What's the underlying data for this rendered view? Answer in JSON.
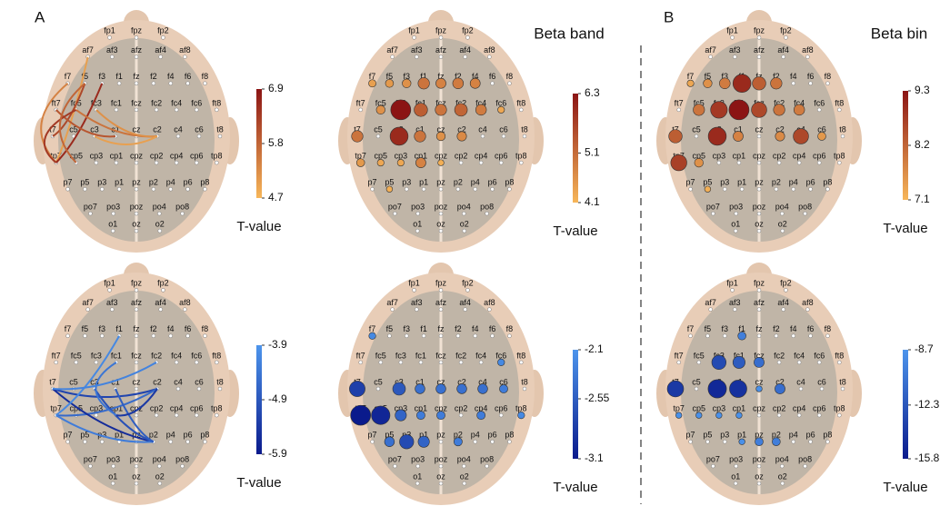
{
  "panel_labels": [
    "A",
    "B"
  ],
  "electrodes": [
    "fp1",
    "fpz",
    "fp2",
    "af7",
    "af3",
    "afz",
    "af4",
    "af8",
    "f7",
    "f5",
    "f3",
    "f1",
    "fz",
    "f2",
    "f4",
    "f6",
    "f8",
    "ft7",
    "fc5",
    "fc3",
    "fc1",
    "fcz",
    "fc2",
    "fc4",
    "fc6",
    "ft8",
    "t7",
    "c5",
    "c3",
    "c1",
    "cz",
    "c2",
    "c4",
    "c6",
    "t8",
    "tp7",
    "cp5",
    "cp3",
    "cp1",
    "cpz",
    "cp2",
    "cp4",
    "cp6",
    "tp8",
    "p7",
    "p5",
    "p3",
    "p1",
    "pz",
    "p2",
    "p4",
    "p6",
    "p8",
    "po7",
    "po3",
    "poz",
    "po4",
    "po8",
    "o1",
    "oz",
    "o2"
  ],
  "plots": [
    {
      "type": "connectivity",
      "colorbar": {
        "lim": [
          4.7,
          6.9
        ],
        "ticks": [
          4.7,
          5.8,
          6.9
        ],
        "label": "T-value",
        "colors": [
          "#f7b659",
          "#8b1414"
        ]
      },
      "connections": [
        {
          "from": "af7",
          "to": "tp7",
          "value": 5.0
        },
        {
          "from": "f7",
          "to": "tp7",
          "value": 5.4
        },
        {
          "from": "f5",
          "to": "t7",
          "value": 6.2
        },
        {
          "from": "f3",
          "to": "tp7",
          "value": 6.6
        },
        {
          "from": "fc5",
          "to": "c2",
          "value": 5.6
        },
        {
          "from": "fc3",
          "to": "c2",
          "value": 5.2
        },
        {
          "from": "c3",
          "to": "c2",
          "value": 5.0
        },
        {
          "from": "ft7",
          "to": "c1",
          "value": 6.0
        },
        {
          "from": "fc5",
          "to": "tp7",
          "value": 6.4
        },
        {
          "from": "f5",
          "to": "cp5",
          "value": 5.8
        }
      ]
    },
    {
      "type": "nodes",
      "title": "Beta band",
      "colorbar": {
        "lim": [
          4.1,
          6.3
        ],
        "ticks": [
          4.1,
          5.1,
          6.3
        ],
        "label": "T-value",
        "colors": [
          "#f7b659",
          "#8b1414"
        ]
      },
      "nodes": [
        {
          "electrode": "fc3",
          "value": 6.3
        },
        {
          "electrode": "c3",
          "value": 6.0
        },
        {
          "electrode": "f1",
          "value": 5.0
        },
        {
          "electrode": "fz",
          "value": 4.8
        },
        {
          "electrode": "f2",
          "value": 4.9
        },
        {
          "electrode": "f4",
          "value": 4.8
        },
        {
          "electrode": "fc1",
          "value": 5.3
        },
        {
          "electrode": "fcz",
          "value": 5.0
        },
        {
          "electrode": "fc2",
          "value": 5.2
        },
        {
          "electrode": "fc4",
          "value": 4.9
        },
        {
          "electrode": "c1",
          "value": 5.0
        },
        {
          "electrode": "cz",
          "value": 4.6
        },
        {
          "electrode": "c2",
          "value": 4.7
        },
        {
          "electrode": "f7",
          "value": 4.4
        },
        {
          "electrode": "f5",
          "value": 4.5
        },
        {
          "electrode": "f3",
          "value": 4.6
        },
        {
          "electrode": "fc5",
          "value": 4.6
        },
        {
          "electrode": "t7",
          "value": 5.0
        },
        {
          "electrode": "tp7",
          "value": 4.5
        },
        {
          "electrode": "cp5",
          "value": 4.3
        },
        {
          "electrode": "cp3",
          "value": 4.3
        },
        {
          "electrode": "cp1",
          "value": 4.8
        },
        {
          "electrode": "cpz",
          "value": 4.2
        },
        {
          "electrode": "p5",
          "value": 4.2
        },
        {
          "electrode": "fc6",
          "value": 4.3
        }
      ]
    },
    {
      "type": "nodes",
      "title": "Beta bin",
      "colorbar": {
        "lim": [
          7.1,
          9.3
        ],
        "ticks": [
          7.1,
          8.2,
          9.3
        ],
        "label": "T-value",
        "colors": [
          "#f7b659",
          "#8b1414"
        ]
      },
      "nodes": [
        {
          "electrode": "f1",
          "value": 9.0
        },
        {
          "electrode": "fz",
          "value": 8.3
        },
        {
          "electrode": "f2",
          "value": 8.0
        },
        {
          "electrode": "fc3",
          "value": 8.8
        },
        {
          "electrode": "fc1",
          "value": 9.3
        },
        {
          "electrode": "fcz",
          "value": 8.6
        },
        {
          "electrode": "fc2",
          "value": 8.0
        },
        {
          "electrode": "fc4",
          "value": 7.9
        },
        {
          "electrode": "fc5",
          "value": 8.0
        },
        {
          "electrode": "f5",
          "value": 7.6
        },
        {
          "electrode": "f3",
          "value": 7.9
        },
        {
          "electrode": "f7",
          "value": 7.3
        },
        {
          "electrode": "c3",
          "value": 9.0
        },
        {
          "electrode": "c1",
          "value": 7.8
        },
        {
          "electrode": "c2",
          "value": 7.7
        },
        {
          "electrode": "c4",
          "value": 8.6
        },
        {
          "electrode": "c6",
          "value": 7.5
        },
        {
          "electrode": "t7",
          "value": 8.3
        },
        {
          "electrode": "tp7",
          "value": 8.7
        },
        {
          "electrode": "cp5",
          "value": 7.6
        },
        {
          "electrode": "p5",
          "value": 7.2
        }
      ]
    },
    {
      "type": "connectivity",
      "colorbar": {
        "lim": [
          -5.9,
          -3.9
        ],
        "ticks": [
          -3.9,
          -4.9,
          -5.9
        ],
        "label": "T-value",
        "colors": [
          "#0a1a8c",
          "#4d95ec"
        ]
      },
      "connections": [
        {
          "from": "t7",
          "to": "c2",
          "value": -5.2
        },
        {
          "from": "tp7",
          "to": "c2",
          "value": -4.6
        },
        {
          "from": "t7",
          "to": "p2",
          "value": -5.6
        },
        {
          "from": "tp7",
          "to": "p2",
          "value": -4.3
        },
        {
          "from": "c3",
          "to": "p2",
          "value": -5.0
        },
        {
          "from": "c1",
          "to": "p2",
          "value": -4.8
        },
        {
          "from": "f1",
          "to": "tp7",
          "value": -4.1
        },
        {
          "from": "fc1",
          "to": "cp1",
          "value": -4.4
        },
        {
          "from": "fc2",
          "to": "t7",
          "value": -4.2
        },
        {
          "from": "cp1",
          "to": "c2",
          "value": -5.4
        }
      ]
    },
    {
      "type": "nodes",
      "colorbar": {
        "lim": [
          -3.1,
          -2.1
        ],
        "ticks": [
          -2.1,
          -2.55,
          -3.1
        ],
        "label": "T-value",
        "colors": [
          "#0a1a8c",
          "#4d95ec"
        ]
      },
      "nodes": [
        {
          "electrode": "t7",
          "value": -2.8
        },
        {
          "electrode": "c3",
          "value": -2.6
        },
        {
          "electrode": "c1",
          "value": -2.4
        },
        {
          "electrode": "cz",
          "value": -2.4
        },
        {
          "electrode": "c2",
          "value": -2.4
        },
        {
          "electrode": "c4",
          "value": -2.4
        },
        {
          "electrode": "c6",
          "value": -2.3
        },
        {
          "electrode": "tp7",
          "value": -3.1
        },
        {
          "electrode": "cp5",
          "value": -3.0
        },
        {
          "electrode": "cp3",
          "value": -2.5
        },
        {
          "electrode": "cp1",
          "value": -2.3
        },
        {
          "electrode": "cpz",
          "value": -2.3
        },
        {
          "electrode": "cp4",
          "value": -2.3
        },
        {
          "electrode": "tp8",
          "value": -2.2
        },
        {
          "electrode": "p3",
          "value": -2.7
        },
        {
          "electrode": "p1",
          "value": -2.5
        },
        {
          "electrode": "p2",
          "value": -2.3
        },
        {
          "electrode": "p5",
          "value": -2.4
        },
        {
          "electrode": "f7",
          "value": -2.2
        },
        {
          "electrode": "fc6",
          "value": -2.2
        }
      ]
    },
    {
      "type": "nodes",
      "colorbar": {
        "lim": [
          -15.8,
          -8.7
        ],
        "ticks": [
          -8.7,
          -12.3,
          -15.8
        ],
        "label": "T-value",
        "colors": [
          "#0a1a8c",
          "#4d95ec"
        ]
      },
      "nodes": [
        {
          "electrode": "t7",
          "value": -14.0
        },
        {
          "electrode": "c3",
          "value": -15.0
        },
        {
          "electrode": "c1",
          "value": -14.5
        },
        {
          "electrode": "fc3",
          "value": -13.0
        },
        {
          "electrode": "fc1",
          "value": -12.0
        },
        {
          "electrode": "fcz",
          "value": -11.0
        },
        {
          "electrode": "f1",
          "value": -10.0
        },
        {
          "electrode": "c2",
          "value": -11.0
        },
        {
          "electrode": "cz",
          "value": -9.0
        },
        {
          "electrode": "cp3",
          "value": -9.0
        },
        {
          "electrode": "cp1",
          "value": -9.0
        },
        {
          "electrode": "p1",
          "value": -9.0
        },
        {
          "electrode": "pz",
          "value": -10.0
        },
        {
          "electrode": "p2",
          "value": -10.0
        },
        {
          "electrode": "tp7",
          "value": -9.0
        },
        {
          "electrode": "cp5",
          "value": -9.0
        }
      ]
    }
  ]
}
